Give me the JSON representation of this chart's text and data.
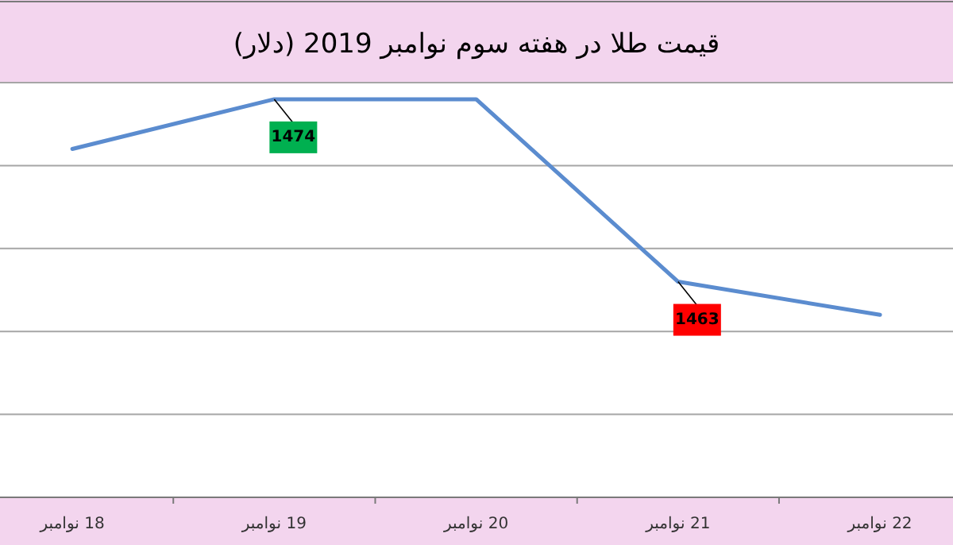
{
  "chart_data": {
    "type": "line",
    "title": "قیمت طلا در هفته سوم نوامبر 2019 (دلار)",
    "categories": [
      "18 نوامبر",
      "19 نوامبر",
      "20 نوامبر",
      "21 نوامبر",
      "22 نوامبر"
    ],
    "series": [
      {
        "color": "#5b8ccf",
        "values": [
          1471,
          1474,
          1474,
          1463,
          1461
        ],
        "value_labels": [
          null,
          "1474",
          null,
          "1463",
          null
        ]
      }
    ],
    "ylim": [
      1450,
      1475
    ],
    "yticks": [
      {
        "value": 1450,
        "label": null
      },
      {
        "value": 1455,
        "label": null
      },
      {
        "value": 1460,
        "label": null
      },
      {
        "value": 1465,
        "label": null
      },
      {
        "value": 1470,
        "label": null
      },
      {
        "value": 1475,
        "label": null
      }
    ],
    "tick_labels": "x",
    "grid": "y",
    "marker": "none",
    "line_style": "solid"
  }
}
